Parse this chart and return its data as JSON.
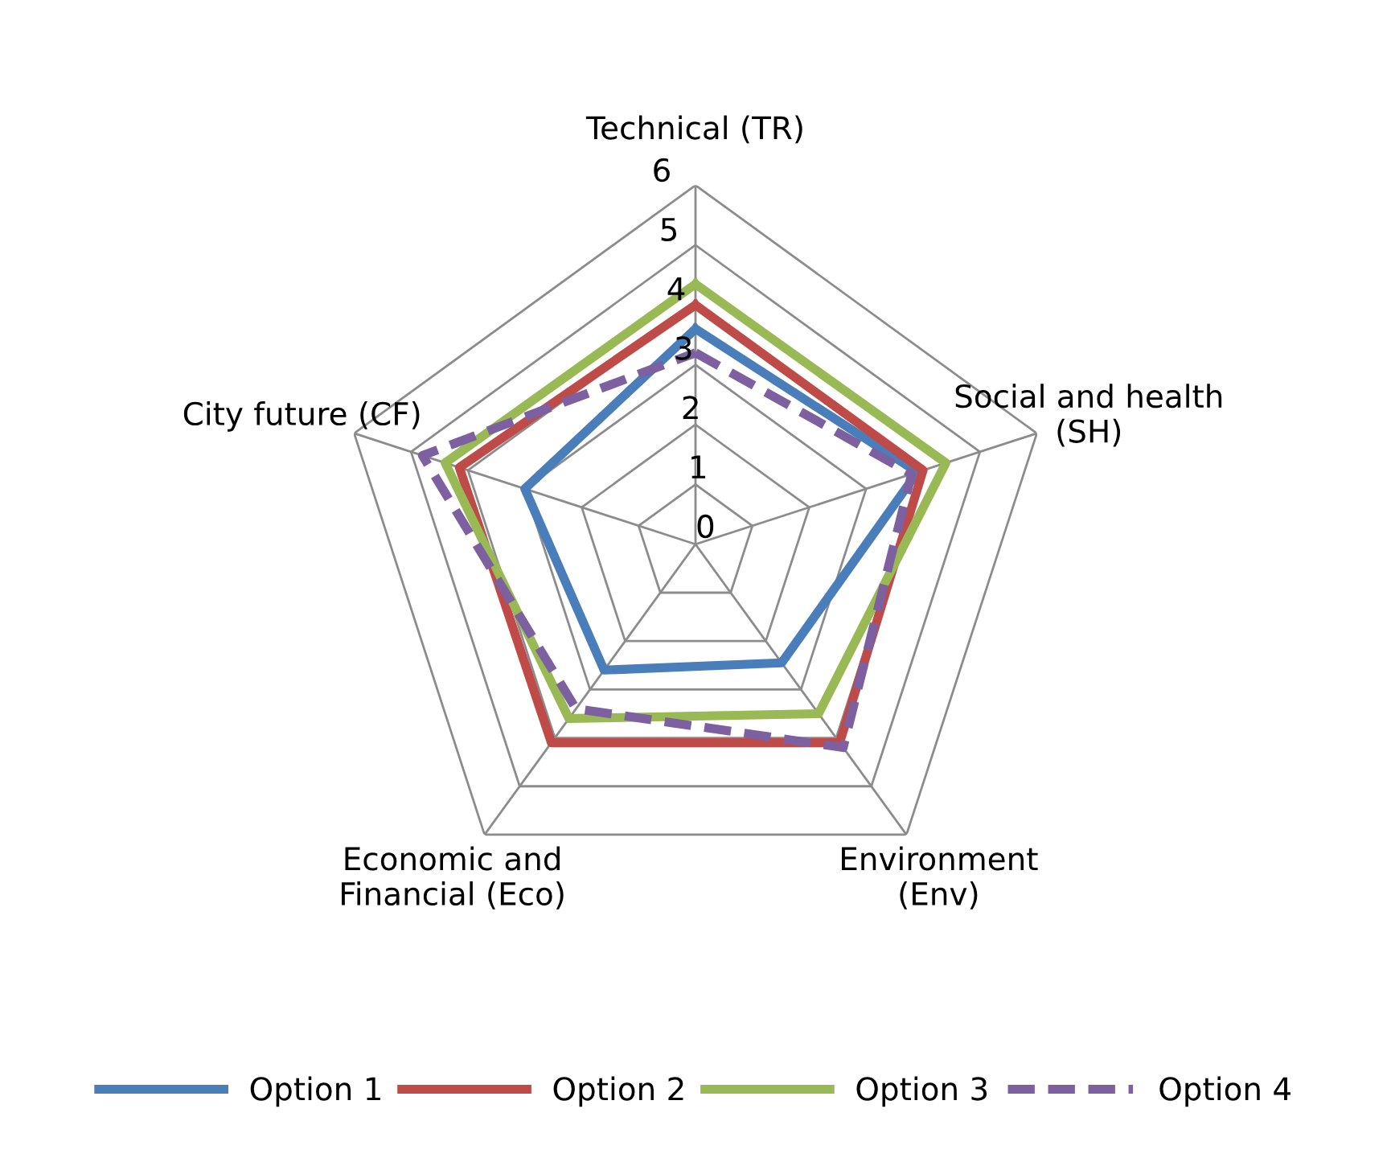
{
  "chart_data": {
    "type": "radar",
    "categories": [
      "Technical (TR)",
      "Social and health\n(SH)",
      "Environment\n(Env)",
      "Economic and\nFinancial (Eco)",
      "City future (CF)"
    ],
    "series": [
      {
        "name": "Option 1",
        "color": "#4a7ebb",
        "values": [
          3.6,
          3.9,
          2.45,
          2.6,
          3.0
        ]
      },
      {
        "name": "Option 2",
        "color": "#be4b48",
        "values": [
          4.0,
          4.0,
          4.1,
          4.1,
          4.15
        ]
      },
      {
        "name": "Option 3",
        "color": "#98b954",
        "values": [
          4.35,
          4.4,
          3.5,
          3.6,
          4.4
        ]
      },
      {
        "name": "Option 4",
        "color": "#7d60a0",
        "values": [
          3.2,
          3.8,
          4.2,
          3.4,
          4.8
        ],
        "line_style": "dashed"
      }
    ],
    "ylim": [
      0,
      6
    ],
    "yticks": [
      0,
      1,
      2,
      3,
      4,
      5,
      6
    ],
    "grid": true,
    "legend": "bottom",
    "line_style": "solid"
  }
}
